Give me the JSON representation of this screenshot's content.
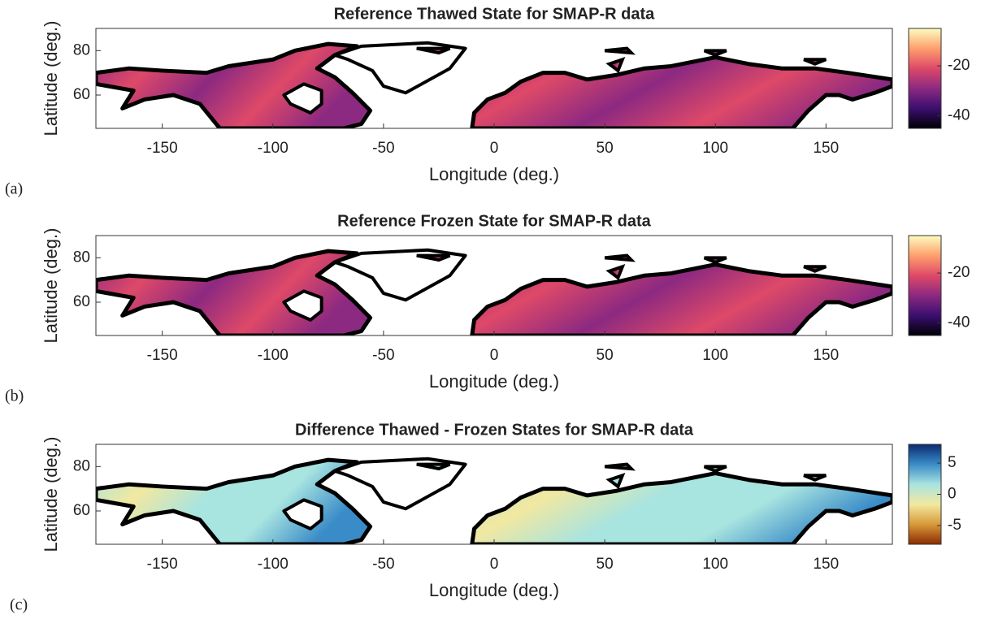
{
  "chart_data": [
    {
      "type": "map",
      "title": "Reference Thawed State for SMAP-R data",
      "panel_label": "(a)",
      "x_label": "Longitude (deg.)",
      "y_label": "Latitude (deg.)",
      "xlim": [
        -180,
        180
      ],
      "ylim": [
        45,
        90
      ],
      "xticks": [
        -150,
        -100,
        -50,
        0,
        50,
        100,
        150
      ],
      "yticks": [
        60,
        80
      ],
      "clim": [
        -45,
        -5
      ],
      "cticks": [
        -40,
        -20
      ],
      "colormap": [
        "#000004",
        "#3b0f70",
        "#8c2981",
        "#de4968",
        "#fe9f6d",
        "#fcfdbf"
      ]
    },
    {
      "type": "map",
      "title": "Reference Frozen State for SMAP-R data",
      "panel_label": "(b)",
      "x_label": "Longitude (deg.)",
      "y_label": "Latitude (deg.)",
      "xlim": [
        -180,
        180
      ],
      "ylim": [
        45,
        90
      ],
      "xticks": [
        -150,
        -100,
        -50,
        0,
        50,
        100,
        150
      ],
      "yticks": [
        60,
        80
      ],
      "clim": [
        -45,
        -5
      ],
      "cticks": [
        -40,
        -20
      ],
      "colormap": [
        "#000004",
        "#3b0f70",
        "#8c2981",
        "#de4968",
        "#fe9f6d",
        "#fcfdbf"
      ]
    },
    {
      "type": "map",
      "title": "Difference Thawed - Frozen States for SMAP-R data",
      "panel_label": "(c)",
      "x_label": "Longitude (deg.)",
      "y_label": "Latitude (deg.)",
      "xlim": [
        -180,
        180
      ],
      "ylim": [
        45,
        90
      ],
      "xticks": [
        -150,
        -100,
        -50,
        0,
        50,
        100,
        150
      ],
      "yticks": [
        60,
        80
      ],
      "clim": [
        -8,
        8
      ],
      "cticks": [
        -5,
        0,
        5
      ],
      "colormap": [
        "#8b2b00",
        "#d89a3a",
        "#f2e8a0",
        "#a8e4e0",
        "#3a8cc8",
        "#0b2a70"
      ]
    }
  ]
}
